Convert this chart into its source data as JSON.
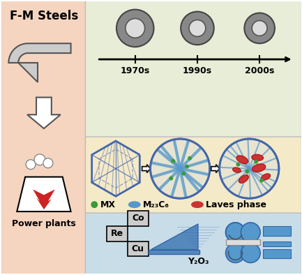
{
  "bg_color": "#ffffff",
  "left_panel_color": "#f5d5c0",
  "top_right_color": "#e8edd8",
  "mid_right_color": "#f5eac8",
  "bot_right_color": "#c8dde8",
  "title_fm": "F-M Steels",
  "title_pp": "Power plants",
  "timeline_years": [
    "1970s",
    "1990s",
    "2000s"
  ],
  "legend_labels": [
    "MX",
    "M₂₃C₆",
    "Laves phase"
  ],
  "legend_colors": [
    "#3a9a3a",
    "#5599cc",
    "#cc3333"
  ],
  "elements": [
    "Co",
    "Re",
    "Cu"
  ],
  "y2o3_label": "Y₂O₃",
  "ring_gray": "#888888",
  "blue_color": "#5599cc",
  "red_color": "#cc3333",
  "green_color": "#3a9a3a",
  "hex_fill": "#f5eac8",
  "hex_edge": "#4466aa",
  "circle_fill": "#e8e4d0",
  "circle_edge": "#4466aa"
}
